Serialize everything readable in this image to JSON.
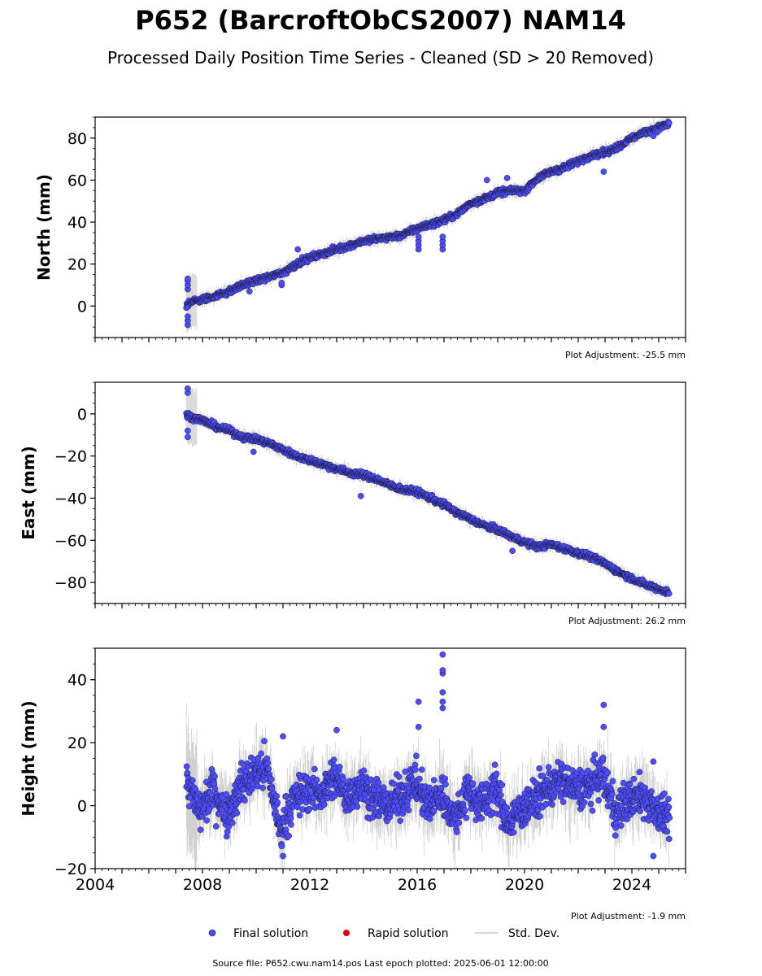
{
  "title": "P652 (BarcroftObCS2007) NAM14",
  "subtitle": "Processed Daily Position Time Series - Cleaned (SD > 20 Removed)",
  "source_text": "Source file: P652.cwu.nam14.pos  Last epoch plotted: 2025-06-01 12:00:00",
  "legend": {
    "final": "Final solution",
    "rapid": "Rapid solution",
    "std": "Std. Dev."
  },
  "colors": {
    "final": "#4d4dff",
    "rapid": "#dd0000",
    "std": "#c8c8c8",
    "marker_edge": "#1a1a33"
  },
  "chart_data": [
    {
      "type": "scatter",
      "ylabel": "North (mm)",
      "adjustment": "Plot Adjustment: -25.5 mm",
      "xlim": [
        2004,
        2026
      ],
      "ylim": [
        -15,
        90
      ],
      "yticks": [
        0,
        20,
        40,
        60,
        80
      ],
      "yminor": 5,
      "xticks_labeled": false,
      "start": 2007.4,
      "end": 2025.4,
      "series": [
        {
          "x": [
            2007.4,
            2007.5,
            2008.0,
            2008.5,
            2009.0,
            2009.5,
            2010.0,
            2010.5,
            2011.0,
            2011.5,
            2012.0,
            2012.5,
            2013.0,
            2013.5,
            2014.0,
            2014.5,
            2015.0,
            2015.5,
            2016.0,
            2016.5,
            2017.0,
            2017.5,
            2018.0,
            2018.5,
            2019.0,
            2019.5,
            2020.0,
            2020.5,
            2021.0,
            2021.5,
            2022.0,
            2022.5,
            2023.0,
            2023.5,
            2024.0,
            2024.5,
            2025.0,
            2025.4
          ],
          "values": [
            0,
            2,
            3,
            5,
            7,
            10,
            12,
            14,
            16,
            20,
            23,
            25,
            27,
            29,
            31,
            32,
            33,
            34,
            37,
            39,
            41,
            44,
            49,
            51,
            54,
            55,
            55,
            61,
            64,
            66,
            69,
            72,
            73,
            76,
            80,
            83,
            85,
            87
          ]
        }
      ],
      "outliers": [
        {
          "x": 2007.45,
          "values": [
            -9,
            -7,
            -5,
            8,
            10,
            12,
            13
          ]
        },
        {
          "x": 2009.75,
          "values": [
            7
          ]
        },
        {
          "x": 2010.95,
          "values": [
            10,
            11
          ]
        },
        {
          "x": 2011.55,
          "values": [
            27
          ]
        },
        {
          "x": 2016.05,
          "values": [
            27,
            29,
            31,
            33
          ]
        },
        {
          "x": 2016.95,
          "values": [
            27,
            29,
            31,
            33
          ]
        },
        {
          "x": 2018.6,
          "values": [
            60
          ]
        },
        {
          "x": 2019.35,
          "values": [
            61
          ]
        },
        {
          "x": 2022.95,
          "values": [
            64
          ]
        },
        {
          "x": 2024.8,
          "values": [
            81
          ]
        }
      ]
    },
    {
      "type": "scatter",
      "ylabel": "East (mm)",
      "adjustment": "Plot Adjustment: 26.2 mm",
      "xlim": [
        2004,
        2026
      ],
      "ylim": [
        -90,
        15
      ],
      "yticks": [
        0,
        -20,
        -40,
        -60,
        -80
      ],
      "yminor": 5,
      "xticks_labeled": false,
      "start": 2007.4,
      "end": 2025.4,
      "series": [
        {
          "x": [
            2007.4,
            2007.5,
            2008.0,
            2008.5,
            2009.0,
            2009.5,
            2010.0,
            2010.5,
            2011.0,
            2011.5,
            2012.0,
            2012.5,
            2013.0,
            2013.5,
            2014.0,
            2014.5,
            2015.0,
            2015.5,
            2016.0,
            2016.5,
            2017.0,
            2017.5,
            2018.0,
            2018.5,
            2019.0,
            2019.5,
            2020.0,
            2020.5,
            2021.0,
            2021.5,
            2022.0,
            2022.5,
            2023.0,
            2023.5,
            2024.0,
            2024.5,
            2025.0,
            2025.4
          ],
          "values": [
            0,
            -1,
            -3,
            -6,
            -8,
            -11,
            -12,
            -14,
            -17,
            -20,
            -22,
            -24,
            -26,
            -28,
            -29,
            -31,
            -34,
            -36,
            -37,
            -40,
            -43,
            -47,
            -50,
            -53,
            -55,
            -58,
            -61,
            -63,
            -62,
            -64,
            -66,
            -68,
            -71,
            -75,
            -78,
            -81,
            -83,
            -85
          ]
        }
      ],
      "outliers": [
        {
          "x": 2007.45,
          "values": [
            -11,
            -8,
            10,
            12
          ]
        },
        {
          "x": 2009.9,
          "values": [
            -18
          ]
        },
        {
          "x": 2013.9,
          "values": [
            -39
          ]
        },
        {
          "x": 2019.55,
          "values": [
            -65
          ]
        }
      ]
    },
    {
      "type": "scatter",
      "ylabel": "Height (mm)",
      "adjustment": "Plot Adjustment: -1.9 mm",
      "xlim": [
        2004,
        2026
      ],
      "ylim": [
        -20,
        50
      ],
      "yticks": [
        -20,
        0,
        20,
        40
      ],
      "yminor": 5,
      "xticks_labeled": true,
      "xtick_labels": [
        "2004",
        "2008",
        "2012",
        "2016",
        "2020",
        "2024"
      ],
      "start": 2007.4,
      "end": 2025.4,
      "series": [
        {
          "x": [
            2007.4,
            2007.9,
            2008.4,
            2008.9,
            2009.4,
            2009.9,
            2010.4,
            2010.9,
            2011.4,
            2011.9,
            2012.4,
            2012.9,
            2013.4,
            2013.9,
            2014.4,
            2014.9,
            2015.4,
            2015.9,
            2016.4,
            2016.9,
            2017.4,
            2017.9,
            2018.4,
            2018.9,
            2019.4,
            2019.9,
            2020.4,
            2020.9,
            2021.4,
            2021.9,
            2022.4,
            2022.9,
            2023.4,
            2023.9,
            2024.4,
            2024.9,
            2025.4
          ],
          "values": [
            8,
            -2,
            5,
            -3,
            6,
            10,
            12,
            -8,
            2,
            5,
            4,
            9,
            3,
            7,
            2,
            0,
            3,
            8,
            0,
            4,
            -4,
            5,
            0,
            6,
            -6,
            -1,
            2,
            6,
            8,
            5,
            6,
            10,
            -2,
            2,
            3,
            -1,
            -4
          ]
        }
      ],
      "outliers": [
        {
          "x": 2016.05,
          "values": [
            25,
            33
          ]
        },
        {
          "x": 2016.95,
          "values": [
            31,
            33,
            36,
            42,
            43,
            48
          ]
        },
        {
          "x": 2022.95,
          "values": [
            25,
            32
          ]
        },
        {
          "x": 2013.0,
          "values": [
            24
          ]
        },
        {
          "x": 2011.0,
          "values": [
            -16,
            22
          ]
        },
        {
          "x": 2024.8,
          "values": [
            -16,
            14
          ]
        }
      ]
    }
  ]
}
